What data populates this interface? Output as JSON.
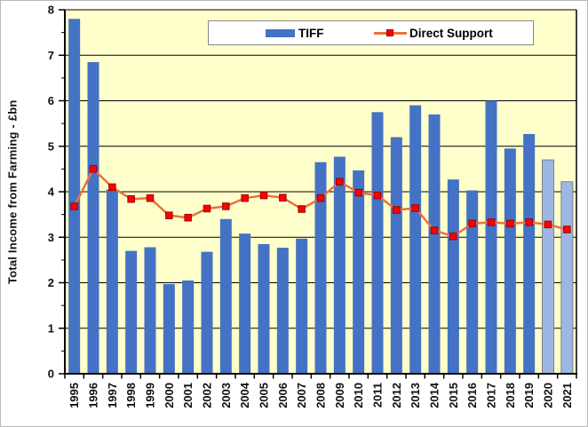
{
  "chart_data": {
    "type": "bar",
    "title": "",
    "ylabel": "Total Income from Farming - £bn",
    "xlabel": "",
    "ylim": [
      0,
      8
    ],
    "ytick_step": 1,
    "yminor_step": 0.5,
    "grid": "horizontal",
    "plot_background": "#FFFFCC",
    "gridline_color": "#000000",
    "axis_color": "#000000",
    "categories": [
      "1995",
      "1996",
      "1997",
      "1998",
      "1999",
      "2000",
      "2001",
      "2002",
      "2003",
      "2004",
      "2005",
      "2006",
      "2007",
      "2008",
      "2009",
      "2010",
      "2011",
      "2012",
      "2013",
      "2014",
      "2015",
      "2016",
      "2017",
      "2018",
      "2019",
      "2020",
      "2021"
    ],
    "series": [
      {
        "name": "TIFF",
        "type": "bar",
        "color": "#4472C4",
        "highlight_color": "#9DB7E4",
        "highlight_border": "#7F7F7F",
        "highlight_categories": [
          "2020",
          "2021"
        ],
        "values": [
          7.8,
          6.85,
          4.05,
          2.7,
          2.78,
          1.97,
          2.05,
          2.68,
          3.4,
          3.08,
          2.85,
          2.77,
          2.97,
          4.65,
          4.77,
          4.47,
          5.75,
          5.2,
          5.9,
          5.7,
          4.27,
          4.03,
          6.0,
          4.95,
          5.27,
          4.7,
          4.22
        ]
      },
      {
        "name": "Direct Support",
        "type": "line",
        "line_color": "#E8733F",
        "marker": "square",
        "marker_color": "#FF0000",
        "marker_border": "#990000",
        "values": [
          3.68,
          4.5,
          4.1,
          3.84,
          3.86,
          3.48,
          3.43,
          3.63,
          3.68,
          3.86,
          3.92,
          3.87,
          3.62,
          3.86,
          4.22,
          3.98,
          3.92,
          3.6,
          3.64,
          3.15,
          3.02,
          3.3,
          3.33,
          3.3,
          3.33,
          3.28,
          3.17
        ]
      }
    ],
    "legend": {
      "position": "top-center-inside",
      "items": [
        {
          "label": "TIFF"
        },
        {
          "label": "Direct Support"
        }
      ]
    }
  }
}
